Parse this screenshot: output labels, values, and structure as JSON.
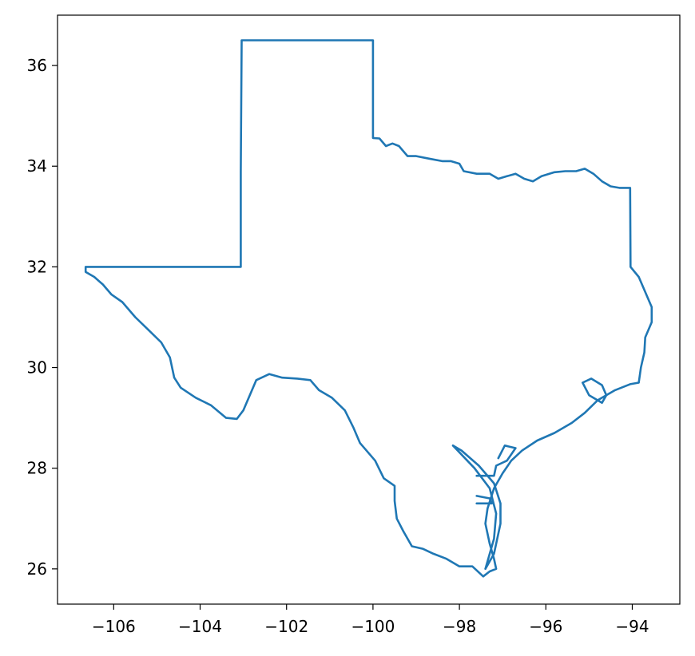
{
  "chart_data": {
    "type": "line",
    "title": "",
    "xlabel": "",
    "ylabel": "",
    "xlim": [
      -107.3,
      -92.9
    ],
    "ylim": [
      25.3,
      37.0
    ],
    "xticks": [
      -106,
      -104,
      -102,
      -100,
      -98,
      -96,
      -94
    ],
    "yticks": [
      26,
      28,
      30,
      32,
      34,
      36
    ],
    "xtick_labels": [
      "−106",
      "−104",
      "−102",
      "−100",
      "−98",
      "−96",
      "−94"
    ],
    "ytick_labels": [
      "26",
      "28",
      "30",
      "32",
      "34",
      "36"
    ],
    "grid": false,
    "legend": "none",
    "series": [
      {
        "color": "#1f77b4",
        "outline": [
          [
            -106.65,
            32.0
          ],
          [
            -103.06,
            32.0
          ],
          [
            -103.06,
            33.9
          ],
          [
            -103.04,
            36.5
          ],
          [
            -100.0,
            36.5
          ],
          [
            -100.0,
            34.56
          ],
          [
            -99.85,
            34.55
          ],
          [
            -99.7,
            34.4
          ],
          [
            -99.55,
            34.45
          ],
          [
            -99.4,
            34.4
          ],
          [
            -99.2,
            34.2
          ],
          [
            -99.0,
            34.2
          ],
          [
            -98.7,
            34.15
          ],
          [
            -98.4,
            34.1
          ],
          [
            -98.2,
            34.1
          ],
          [
            -98.0,
            34.05
          ],
          [
            -97.9,
            33.9
          ],
          [
            -97.6,
            33.85
          ],
          [
            -97.3,
            33.85
          ],
          [
            -97.1,
            33.75
          ],
          [
            -96.9,
            33.8
          ],
          [
            -96.7,
            33.85
          ],
          [
            -96.5,
            33.75
          ],
          [
            -96.3,
            33.7
          ],
          [
            -96.1,
            33.8
          ],
          [
            -95.8,
            33.88
          ],
          [
            -95.55,
            33.9
          ],
          [
            -95.3,
            33.9
          ],
          [
            -95.1,
            33.95
          ],
          [
            -94.9,
            33.85
          ],
          [
            -94.7,
            33.7
          ],
          [
            -94.5,
            33.6
          ],
          [
            -94.3,
            33.57
          ],
          [
            -94.05,
            33.57
          ],
          [
            -94.04,
            32.0
          ],
          [
            -93.85,
            31.8
          ],
          [
            -93.7,
            31.5
          ],
          [
            -93.55,
            31.2
          ],
          [
            -93.55,
            30.9
          ],
          [
            -93.7,
            30.6
          ],
          [
            -93.72,
            30.3
          ],
          [
            -93.8,
            30.0
          ],
          [
            -93.85,
            29.7
          ],
          [
            -94.05,
            29.67
          ],
          [
            -94.4,
            29.55
          ],
          [
            -94.8,
            29.35
          ],
          [
            -95.1,
            29.1
          ],
          [
            -95.4,
            28.9
          ],
          [
            -95.8,
            28.7
          ],
          [
            -96.2,
            28.55
          ],
          [
            -96.55,
            28.35
          ],
          [
            -96.8,
            28.15
          ],
          [
            -97.0,
            27.9
          ],
          [
            -97.2,
            27.6
          ],
          [
            -97.35,
            27.2
          ],
          [
            -97.4,
            26.9
          ],
          [
            -97.3,
            26.5
          ],
          [
            -97.2,
            26.2
          ],
          [
            -97.15,
            26.0
          ],
          [
            -97.3,
            25.95
          ],
          [
            -97.45,
            25.85
          ],
          [
            -97.7,
            26.05
          ],
          [
            -98.0,
            26.05
          ],
          [
            -98.3,
            26.2
          ],
          [
            -98.6,
            26.3
          ],
          [
            -98.85,
            26.4
          ],
          [
            -99.1,
            26.45
          ],
          [
            -99.3,
            26.75
          ],
          [
            -99.45,
            27.0
          ],
          [
            -99.5,
            27.35
          ],
          [
            -99.5,
            27.65
          ],
          [
            -99.75,
            27.8
          ],
          [
            -99.95,
            28.15
          ],
          [
            -100.3,
            28.5
          ],
          [
            -100.45,
            28.8
          ],
          [
            -100.65,
            29.15
          ],
          [
            -100.95,
            29.4
          ],
          [
            -101.25,
            29.55
          ],
          [
            -101.45,
            29.75
          ],
          [
            -101.75,
            29.78
          ],
          [
            -102.1,
            29.8
          ],
          [
            -102.4,
            29.87
          ],
          [
            -102.7,
            29.75
          ],
          [
            -102.85,
            29.45
          ],
          [
            -103.0,
            29.15
          ],
          [
            -103.15,
            28.98
          ],
          [
            -103.4,
            29.0
          ],
          [
            -103.75,
            29.25
          ],
          [
            -104.1,
            29.4
          ],
          [
            -104.45,
            29.6
          ],
          [
            -104.6,
            29.8
          ],
          [
            -104.7,
            30.2
          ],
          [
            -104.9,
            30.5
          ],
          [
            -105.2,
            30.75
          ],
          [
            -105.5,
            31.0
          ],
          [
            -105.8,
            31.3
          ],
          [
            -106.05,
            31.45
          ],
          [
            -106.25,
            31.65
          ],
          [
            -106.45,
            31.8
          ],
          [
            -106.65,
            31.9
          ],
          [
            -106.65,
            32.0
          ]
        ],
        "islands": [
          [
            [
              -97.4,
              26.0
            ],
            [
              -97.2,
              26.3
            ],
            [
              -97.05,
              26.9
            ],
            [
              -97.05,
              27.3
            ],
            [
              -97.2,
              27.7
            ],
            [
              -97.55,
              28.05
            ],
            [
              -97.95,
              28.35
            ],
            [
              -98.15,
              28.45
            ],
            [
              -97.65,
              28.0
            ],
            [
              -97.3,
              27.6
            ],
            [
              -97.15,
              27.1
            ],
            [
              -97.2,
              26.6
            ],
            [
              -97.4,
              26.0
            ]
          ],
          [
            [
              -94.7,
              29.3
            ],
            [
              -95.0,
              29.45
            ],
            [
              -95.15,
              29.7
            ],
            [
              -94.95,
              29.78
            ],
            [
              -94.7,
              29.65
            ],
            [
              -94.6,
              29.45
            ],
            [
              -94.7,
              29.3
            ]
          ],
          [
            [
              -97.6,
              27.45
            ],
            [
              -97.3,
              27.4
            ],
            [
              -97.25,
              27.3
            ],
            [
              -97.6,
              27.3
            ]
          ],
          [
            [
              -97.6,
              27.85
            ],
            [
              -97.2,
              27.85
            ],
            [
              -97.15,
              28.05
            ],
            [
              -96.9,
              28.15
            ],
            [
              -96.7,
              28.4
            ],
            [
              -96.95,
              28.45
            ],
            [
              -97.1,
              28.2
            ]
          ]
        ]
      }
    ]
  }
}
